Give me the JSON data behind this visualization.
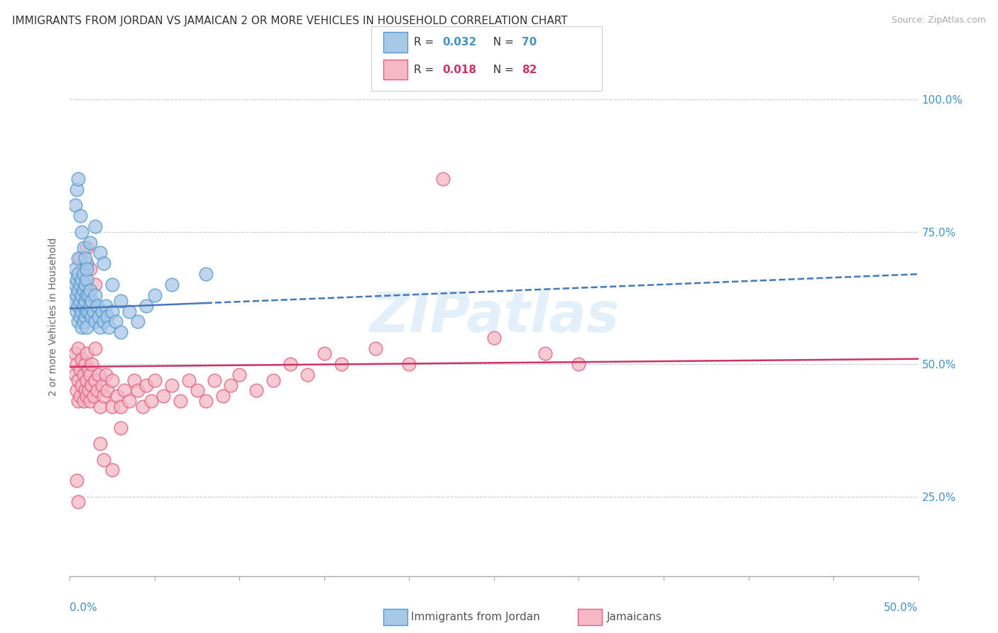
{
  "title": "IMMIGRANTS FROM JORDAN VS JAMAICAN 2 OR MORE VEHICLES IN HOUSEHOLD CORRELATION CHART",
  "source": "Source: ZipAtlas.com",
  "ylabel": "2 or more Vehicles in Household",
  "ytick_labels": [
    "25.0%",
    "50.0%",
    "75.0%",
    "100.0%"
  ],
  "ytick_vals": [
    0.25,
    0.5,
    0.75,
    1.0
  ],
  "xmin": 0.0,
  "xmax": 0.5,
  "ymin": 0.1,
  "ymax": 1.08,
  "color_jordan": "#a8c8e8",
  "color_jordan_edge": "#5599cc",
  "color_jamaican": "#f5b8c4",
  "color_jamaican_edge": "#e06080",
  "color_jordan_line": "#4477bb",
  "color_jamaican_line": "#cc3366",
  "color_axis": "#4393c3",
  "jordan_line_x0": 0.0,
  "jordan_line_x1": 0.5,
  "jordan_line_y0": 0.605,
  "jordan_line_y1": 0.67,
  "jamaican_line_x0": 0.0,
  "jamaican_line_x1": 0.5,
  "jamaican_line_y0": 0.495,
  "jamaican_line_y1": 0.51,
  "jordan_x": [
    0.002,
    0.003,
    0.003,
    0.004,
    0.004,
    0.004,
    0.005,
    0.005,
    0.005,
    0.005,
    0.005,
    0.006,
    0.006,
    0.006,
    0.007,
    0.007,
    0.007,
    0.007,
    0.008,
    0.008,
    0.008,
    0.008,
    0.009,
    0.009,
    0.009,
    0.01,
    0.01,
    0.01,
    0.01,
    0.01,
    0.011,
    0.011,
    0.012,
    0.012,
    0.013,
    0.013,
    0.014,
    0.015,
    0.015,
    0.016,
    0.017,
    0.018,
    0.019,
    0.02,
    0.021,
    0.022,
    0.023,
    0.025,
    0.027,
    0.03,
    0.003,
    0.004,
    0.005,
    0.006,
    0.007,
    0.008,
    0.009,
    0.01,
    0.012,
    0.015,
    0.018,
    0.02,
    0.025,
    0.03,
    0.035,
    0.04,
    0.045,
    0.05,
    0.06,
    0.08
  ],
  "jordan_y": [
    0.62,
    0.65,
    0.68,
    0.6,
    0.63,
    0.66,
    0.58,
    0.61,
    0.64,
    0.67,
    0.7,
    0.59,
    0.62,
    0.65,
    0.57,
    0.6,
    0.63,
    0.66,
    0.58,
    0.61,
    0.64,
    0.67,
    0.59,
    0.62,
    0.65,
    0.57,
    0.6,
    0.63,
    0.66,
    0.69,
    0.6,
    0.63,
    0.61,
    0.64,
    0.59,
    0.62,
    0.6,
    0.63,
    0.58,
    0.61,
    0.59,
    0.57,
    0.6,
    0.58,
    0.61,
    0.59,
    0.57,
    0.6,
    0.58,
    0.56,
    0.8,
    0.83,
    0.85,
    0.78,
    0.75,
    0.72,
    0.7,
    0.68,
    0.73,
    0.76,
    0.71,
    0.69,
    0.65,
    0.62,
    0.6,
    0.58,
    0.61,
    0.63,
    0.65,
    0.67
  ],
  "jamaican_x": [
    0.003,
    0.003,
    0.004,
    0.004,
    0.005,
    0.005,
    0.005,
    0.006,
    0.006,
    0.007,
    0.007,
    0.008,
    0.008,
    0.009,
    0.009,
    0.01,
    0.01,
    0.01,
    0.011,
    0.011,
    0.012,
    0.012,
    0.013,
    0.013,
    0.014,
    0.015,
    0.015,
    0.016,
    0.017,
    0.018,
    0.019,
    0.02,
    0.021,
    0.022,
    0.025,
    0.025,
    0.028,
    0.03,
    0.032,
    0.035,
    0.038,
    0.04,
    0.043,
    0.045,
    0.048,
    0.05,
    0.055,
    0.06,
    0.065,
    0.07,
    0.075,
    0.08,
    0.085,
    0.09,
    0.095,
    0.1,
    0.11,
    0.12,
    0.13,
    0.14,
    0.15,
    0.16,
    0.18,
    0.2,
    0.22,
    0.25,
    0.28,
    0.3,
    0.004,
    0.005,
    0.006,
    0.007,
    0.008,
    0.01,
    0.012,
    0.015,
    0.018,
    0.02,
    0.025,
    0.03
  ],
  "jamaican_y": [
    0.48,
    0.52,
    0.45,
    0.5,
    0.43,
    0.47,
    0.53,
    0.44,
    0.49,
    0.46,
    0.51,
    0.43,
    0.48,
    0.45,
    0.5,
    0.44,
    0.47,
    0.52,
    0.45,
    0.49,
    0.43,
    0.48,
    0.46,
    0.5,
    0.44,
    0.47,
    0.53,
    0.45,
    0.48,
    0.42,
    0.46,
    0.44,
    0.48,
    0.45,
    0.42,
    0.47,
    0.44,
    0.42,
    0.45,
    0.43,
    0.47,
    0.45,
    0.42,
    0.46,
    0.43,
    0.47,
    0.44,
    0.46,
    0.43,
    0.47,
    0.45,
    0.43,
    0.47,
    0.44,
    0.46,
    0.48,
    0.45,
    0.47,
    0.5,
    0.48,
    0.52,
    0.5,
    0.53,
    0.5,
    0.85,
    0.55,
    0.52,
    0.5,
    0.28,
    0.24,
    0.7,
    0.68,
    0.65,
    0.72,
    0.68,
    0.65,
    0.35,
    0.32,
    0.3,
    0.38
  ]
}
